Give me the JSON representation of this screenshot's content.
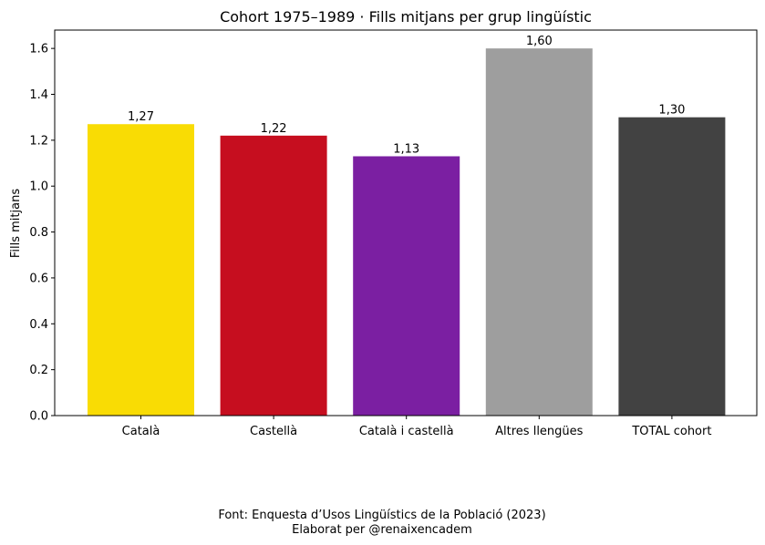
{
  "chart_data": {
    "type": "bar",
    "title": "Cohort 1975–1989 · Fills mitjans per grup lingüístic",
    "xlabel": "",
    "ylabel": "Fills mitjans",
    "categories": [
      "Català",
      "Castellà",
      "Català i castellà",
      "Altres llengües",
      "TOTAL cohort"
    ],
    "values": [
      1.27,
      1.22,
      1.13,
      1.6,
      1.3
    ],
    "value_labels": [
      "1,27",
      "1,22",
      "1,13",
      "1,60",
      "1,30"
    ],
    "colors": [
      "#f9dc04",
      "#c60e1f",
      "#7b1fa2",
      "#9e9e9e",
      "#424242"
    ],
    "ylim": [
      0,
      1.68
    ],
    "yticks": [
      "0.0",
      "0.2",
      "0.4",
      "0.6",
      "0.8",
      "1.0",
      "1.2",
      "1.4",
      "1.6"
    ],
    "grid": false,
    "legend": "none"
  },
  "footer": {
    "source": "Font: Enquesta d’Usos Lingüístics de la Població (2023)",
    "credit": "Elaborat per @renaixencadem"
  }
}
